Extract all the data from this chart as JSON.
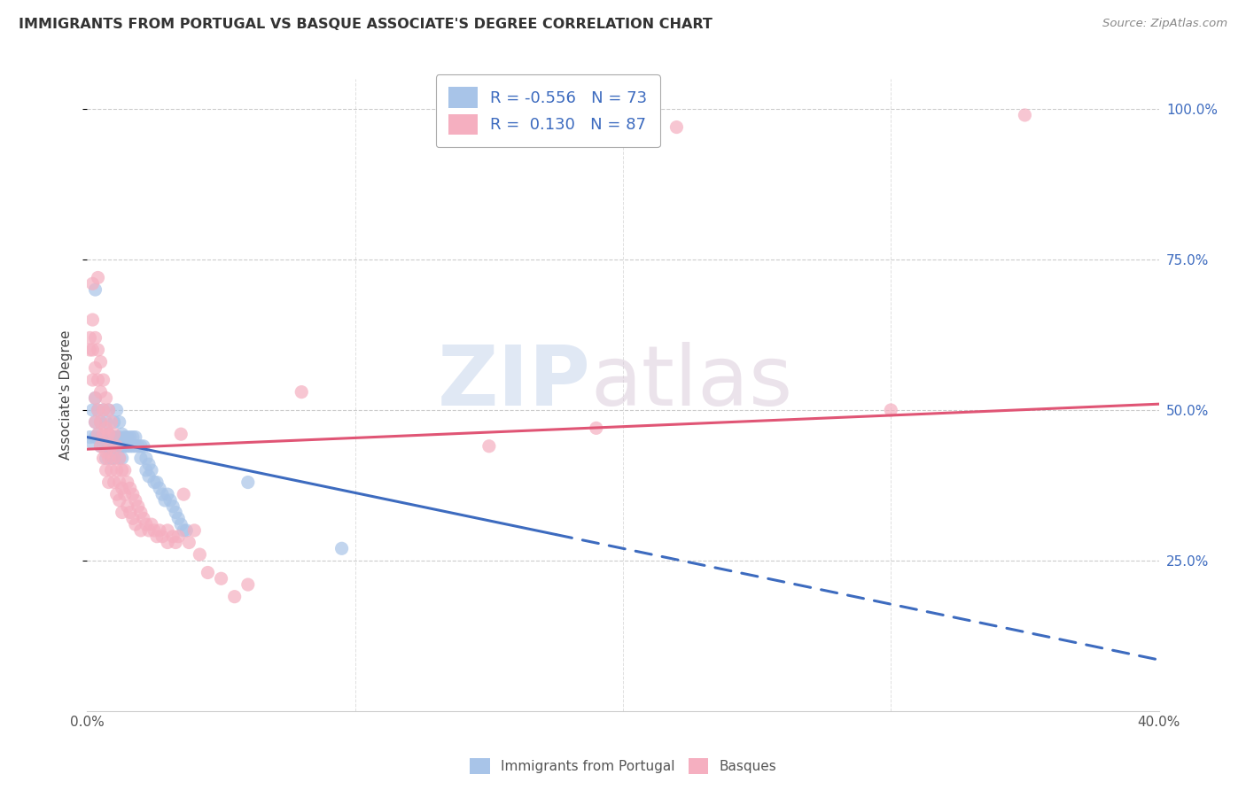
{
  "title": "IMMIGRANTS FROM PORTUGAL VS BASQUE ASSOCIATE'S DEGREE CORRELATION CHART",
  "source": "Source: ZipAtlas.com",
  "ylabel": "Associate's Degree",
  "legend_label1": "Immigrants from Portugal",
  "legend_label2": "Basques",
  "R1": -0.556,
  "N1": 73,
  "R2": 0.13,
  "N2": 87,
  "color_blue": "#a8c4e8",
  "color_pink": "#f5afc0",
  "line_color_blue": "#3d6bbf",
  "line_color_pink": "#e05575",
  "watermark_zip": "ZIP",
  "watermark_atlas": "atlas",
  "xmin": 0.0,
  "xmax": 0.4,
  "ymin": 0.0,
  "ymax": 1.05,
  "trendline_blue_x0": 0.0,
  "trendline_blue_y0": 0.455,
  "trendline_blue_x1": 0.4,
  "trendline_blue_y1": 0.085,
  "trendline_blue_solid_end": 0.175,
  "trendline_pink_x0": 0.0,
  "trendline_pink_y0": 0.435,
  "trendline_pink_x1": 0.4,
  "trendline_pink_y1": 0.51,
  "blue_dots": [
    [
      0.001,
      0.455
    ],
    [
      0.002,
      0.5
    ],
    [
      0.002,
      0.445
    ],
    [
      0.003,
      0.52
    ],
    [
      0.003,
      0.48
    ],
    [
      0.003,
      0.455
    ],
    [
      0.004,
      0.5
    ],
    [
      0.004,
      0.46
    ],
    [
      0.005,
      0.48
    ],
    [
      0.005,
      0.455
    ],
    [
      0.005,
      0.44
    ],
    [
      0.006,
      0.5
    ],
    [
      0.006,
      0.455
    ],
    [
      0.006,
      0.44
    ],
    [
      0.007,
      0.48
    ],
    [
      0.007,
      0.455
    ],
    [
      0.007,
      0.44
    ],
    [
      0.007,
      0.42
    ],
    [
      0.008,
      0.5
    ],
    [
      0.008,
      0.46
    ],
    [
      0.008,
      0.44
    ],
    [
      0.009,
      0.455
    ],
    [
      0.009,
      0.44
    ],
    [
      0.009,
      0.42
    ],
    [
      0.01,
      0.48
    ],
    [
      0.01,
      0.455
    ],
    [
      0.01,
      0.44
    ],
    [
      0.01,
      0.42
    ],
    [
      0.011,
      0.5
    ],
    [
      0.011,
      0.455
    ],
    [
      0.011,
      0.44
    ],
    [
      0.012,
      0.48
    ],
    [
      0.012,
      0.455
    ],
    [
      0.012,
      0.44
    ],
    [
      0.012,
      0.42
    ],
    [
      0.013,
      0.46
    ],
    [
      0.013,
      0.44
    ],
    [
      0.013,
      0.42
    ],
    [
      0.014,
      0.455
    ],
    [
      0.014,
      0.44
    ],
    [
      0.015,
      0.455
    ],
    [
      0.015,
      0.44
    ],
    [
      0.016,
      0.455
    ],
    [
      0.016,
      0.44
    ],
    [
      0.017,
      0.455
    ],
    [
      0.017,
      0.44
    ],
    [
      0.018,
      0.455
    ],
    [
      0.018,
      0.44
    ],
    [
      0.019,
      0.44
    ],
    [
      0.02,
      0.44
    ],
    [
      0.02,
      0.42
    ],
    [
      0.021,
      0.44
    ],
    [
      0.022,
      0.42
    ],
    [
      0.022,
      0.4
    ],
    [
      0.023,
      0.41
    ],
    [
      0.023,
      0.39
    ],
    [
      0.024,
      0.4
    ],
    [
      0.025,
      0.38
    ],
    [
      0.026,
      0.38
    ],
    [
      0.027,
      0.37
    ],
    [
      0.028,
      0.36
    ],
    [
      0.029,
      0.35
    ],
    [
      0.03,
      0.36
    ],
    [
      0.031,
      0.35
    ],
    [
      0.032,
      0.34
    ],
    [
      0.033,
      0.33
    ],
    [
      0.034,
      0.32
    ],
    [
      0.035,
      0.31
    ],
    [
      0.036,
      0.3
    ],
    [
      0.037,
      0.3
    ],
    [
      0.003,
      0.7
    ],
    [
      0.06,
      0.38
    ],
    [
      0.095,
      0.27
    ]
  ],
  "pink_dots": [
    [
      0.001,
      0.62
    ],
    [
      0.001,
      0.6
    ],
    [
      0.002,
      0.65
    ],
    [
      0.002,
      0.6
    ],
    [
      0.002,
      0.55
    ],
    [
      0.003,
      0.62
    ],
    [
      0.003,
      0.57
    ],
    [
      0.003,
      0.52
    ],
    [
      0.003,
      0.48
    ],
    [
      0.004,
      0.6
    ],
    [
      0.004,
      0.55
    ],
    [
      0.004,
      0.5
    ],
    [
      0.004,
      0.46
    ],
    [
      0.005,
      0.58
    ],
    [
      0.005,
      0.53
    ],
    [
      0.005,
      0.48
    ],
    [
      0.005,
      0.44
    ],
    [
      0.006,
      0.55
    ],
    [
      0.006,
      0.5
    ],
    [
      0.006,
      0.46
    ],
    [
      0.006,
      0.42
    ],
    [
      0.007,
      0.52
    ],
    [
      0.007,
      0.47
    ],
    [
      0.007,
      0.43
    ],
    [
      0.007,
      0.4
    ],
    [
      0.008,
      0.5
    ],
    [
      0.008,
      0.46
    ],
    [
      0.008,
      0.42
    ],
    [
      0.008,
      0.38
    ],
    [
      0.009,
      0.48
    ],
    [
      0.009,
      0.44
    ],
    [
      0.009,
      0.4
    ],
    [
      0.01,
      0.46
    ],
    [
      0.01,
      0.42
    ],
    [
      0.01,
      0.38
    ],
    [
      0.011,
      0.44
    ],
    [
      0.011,
      0.4
    ],
    [
      0.011,
      0.36
    ],
    [
      0.012,
      0.42
    ],
    [
      0.012,
      0.38
    ],
    [
      0.012,
      0.35
    ],
    [
      0.013,
      0.4
    ],
    [
      0.013,
      0.37
    ],
    [
      0.013,
      0.33
    ],
    [
      0.014,
      0.4
    ],
    [
      0.014,
      0.36
    ],
    [
      0.015,
      0.38
    ],
    [
      0.015,
      0.34
    ],
    [
      0.016,
      0.37
    ],
    [
      0.016,
      0.33
    ],
    [
      0.017,
      0.36
    ],
    [
      0.017,
      0.32
    ],
    [
      0.018,
      0.35
    ],
    [
      0.018,
      0.31
    ],
    [
      0.019,
      0.34
    ],
    [
      0.02,
      0.33
    ],
    [
      0.02,
      0.3
    ],
    [
      0.021,
      0.32
    ],
    [
      0.022,
      0.31
    ],
    [
      0.023,
      0.3
    ],
    [
      0.024,
      0.31
    ],
    [
      0.025,
      0.3
    ],
    [
      0.026,
      0.29
    ],
    [
      0.027,
      0.3
    ],
    [
      0.028,
      0.29
    ],
    [
      0.03,
      0.3
    ],
    [
      0.03,
      0.28
    ],
    [
      0.032,
      0.29
    ],
    [
      0.033,
      0.28
    ],
    [
      0.034,
      0.29
    ],
    [
      0.035,
      0.46
    ],
    [
      0.036,
      0.36
    ],
    [
      0.038,
      0.28
    ],
    [
      0.04,
      0.3
    ],
    [
      0.042,
      0.26
    ],
    [
      0.045,
      0.23
    ],
    [
      0.05,
      0.22
    ],
    [
      0.055,
      0.19
    ],
    [
      0.06,
      0.21
    ],
    [
      0.002,
      0.71
    ],
    [
      0.004,
      0.72
    ],
    [
      0.08,
      0.53
    ],
    [
      0.15,
      0.44
    ],
    [
      0.19,
      0.47
    ],
    [
      0.22,
      0.97
    ],
    [
      0.35,
      0.99
    ],
    [
      0.3,
      0.5
    ]
  ]
}
